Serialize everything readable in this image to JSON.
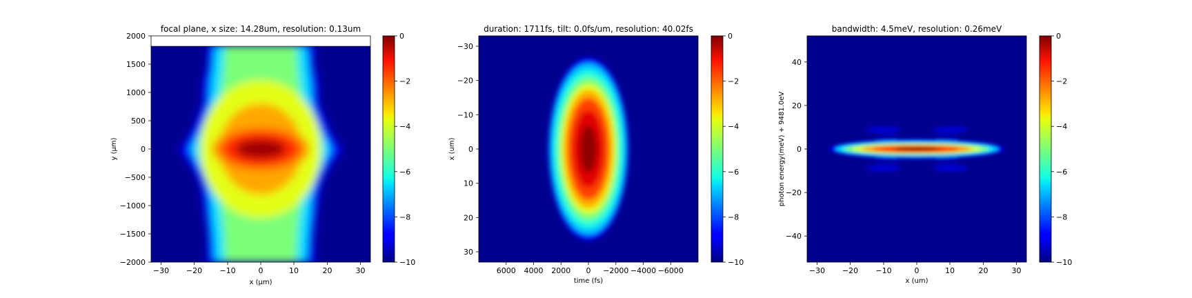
{
  "colorbar": {
    "range": [
      -10,
      0
    ],
    "ticks": [
      "0",
      "−2",
      "−4",
      "−6",
      "−8",
      "−10"
    ]
  },
  "chart_data": [
    {
      "type": "heatmap",
      "title": "focal plane, x size: 14.28um, resolution: 0.13um",
      "xlabel": "x (μm)",
      "ylabel": "y (μm)",
      "xlim": [
        -33,
        33
      ],
      "ylim": [
        -2000,
        2000
      ],
      "xticks": [
        "−30",
        "−20",
        "−10",
        "0",
        "10",
        "20",
        "30"
      ],
      "yticks": [
        "2000",
        "1500",
        "1000",
        "500",
        "0",
        "−500",
        "−1000",
        "−1500",
        "−2000"
      ],
      "data_top": 1820,
      "colorbar_range": [
        -10,
        0
      ]
    },
    {
      "type": "heatmap",
      "title": "duration: 1711fs, tilt: 0.0fs/um, resolution: 40.02fs",
      "xlabel": "time (fs)",
      "ylabel": "x (um)",
      "xlim": [
        8000,
        -8000
      ],
      "ylim": [
        -33,
        33
      ],
      "xticks": [
        "6000",
        "4000",
        "2000",
        "0",
        "−2000",
        "−4000",
        "−6000"
      ],
      "yticks": [
        "−30",
        "−20",
        "−10",
        "0",
        "10",
        "20",
        "30"
      ],
      "colorbar_range": [
        -10,
        0
      ]
    },
    {
      "type": "heatmap",
      "title": "bandwidth: 4.5meV, resolution: 0.26meV",
      "xlabel": "x (um)",
      "ylabel": "photon energy(meV) + 9481.0eV",
      "xlim": [
        -33,
        33
      ],
      "ylim": [
        -52,
        52
      ],
      "xticks": [
        "−30",
        "−20",
        "−10",
        "0",
        "10",
        "20",
        "30"
      ],
      "yticks": [
        "40",
        "20",
        "0",
        "−20",
        "−40"
      ],
      "colorbar_range": [
        -10,
        0
      ]
    }
  ]
}
